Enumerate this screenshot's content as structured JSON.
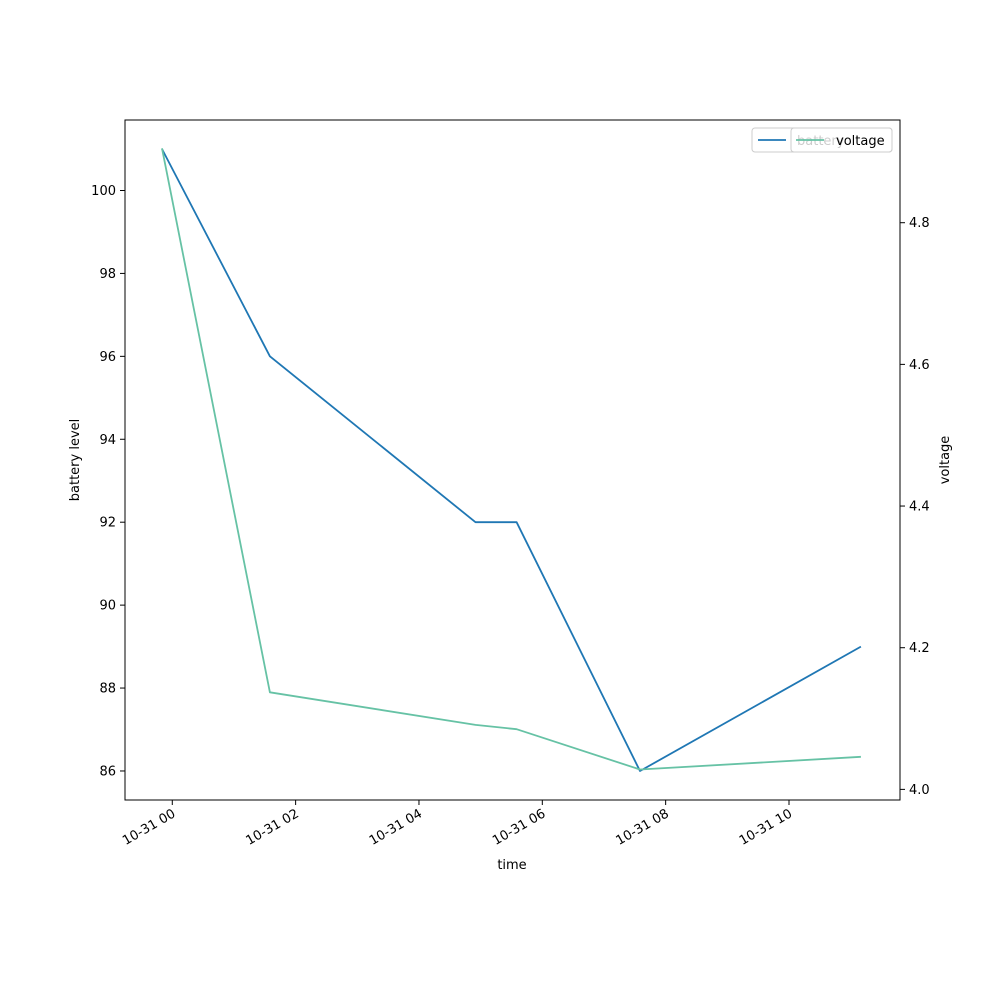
{
  "chart_data": {
    "type": "line",
    "xlabel": "time",
    "ylabel_left": "battery level",
    "ylabel_right": "voltage",
    "x_tick_labels": [
      "10-31 00",
      "10-31 02",
      "10-31 04",
      "10-31 06",
      "10-31 08",
      "10-31 10"
    ],
    "x_ticks": [
      "2023-10-31T00:00",
      "2023-10-31T02:00",
      "2023-10-31T04:00",
      "2023-10-31T06:00",
      "2023-10-31T08:00",
      "2023-10-31T10:00"
    ],
    "x_range": [
      "2023-10-30T23:14",
      "2023-10-31T11:48"
    ],
    "ylim_left": [
      85.3,
      101.7
    ],
    "yticks_left": [
      "86",
      "88",
      "90",
      "92",
      "94",
      "96",
      "98",
      "100"
    ],
    "ylim_right": [
      3.985,
      4.945
    ],
    "yticks_right": [
      "4.0",
      "4.2",
      "4.4",
      "4.6",
      "4.8"
    ],
    "legend_placement": "top-right",
    "series": [
      {
        "name": "battery",
        "axis": "left",
        "color": "#1f77b4",
        "x": [
          "2023-10-30T23:50",
          "2023-10-31T01:35",
          "2023-10-31T04:55",
          "2023-10-31T05:35",
          "2023-10-31T07:35",
          "2023-10-31T11:10"
        ],
        "values": [
          101,
          96,
          92,
          92,
          86,
          89
        ]
      },
      {
        "name": "voltage",
        "axis": "right",
        "color": "#66c2a5",
        "x": [
          "2023-10-30T23:50",
          "2023-10-31T01:35",
          "2023-10-31T04:55",
          "2023-10-31T05:35",
          "2023-10-31T07:35",
          "2023-10-31T11:10"
        ],
        "values": [
          4.905,
          4.137,
          4.091,
          4.085,
          4.028,
          4.046
        ]
      }
    ]
  }
}
